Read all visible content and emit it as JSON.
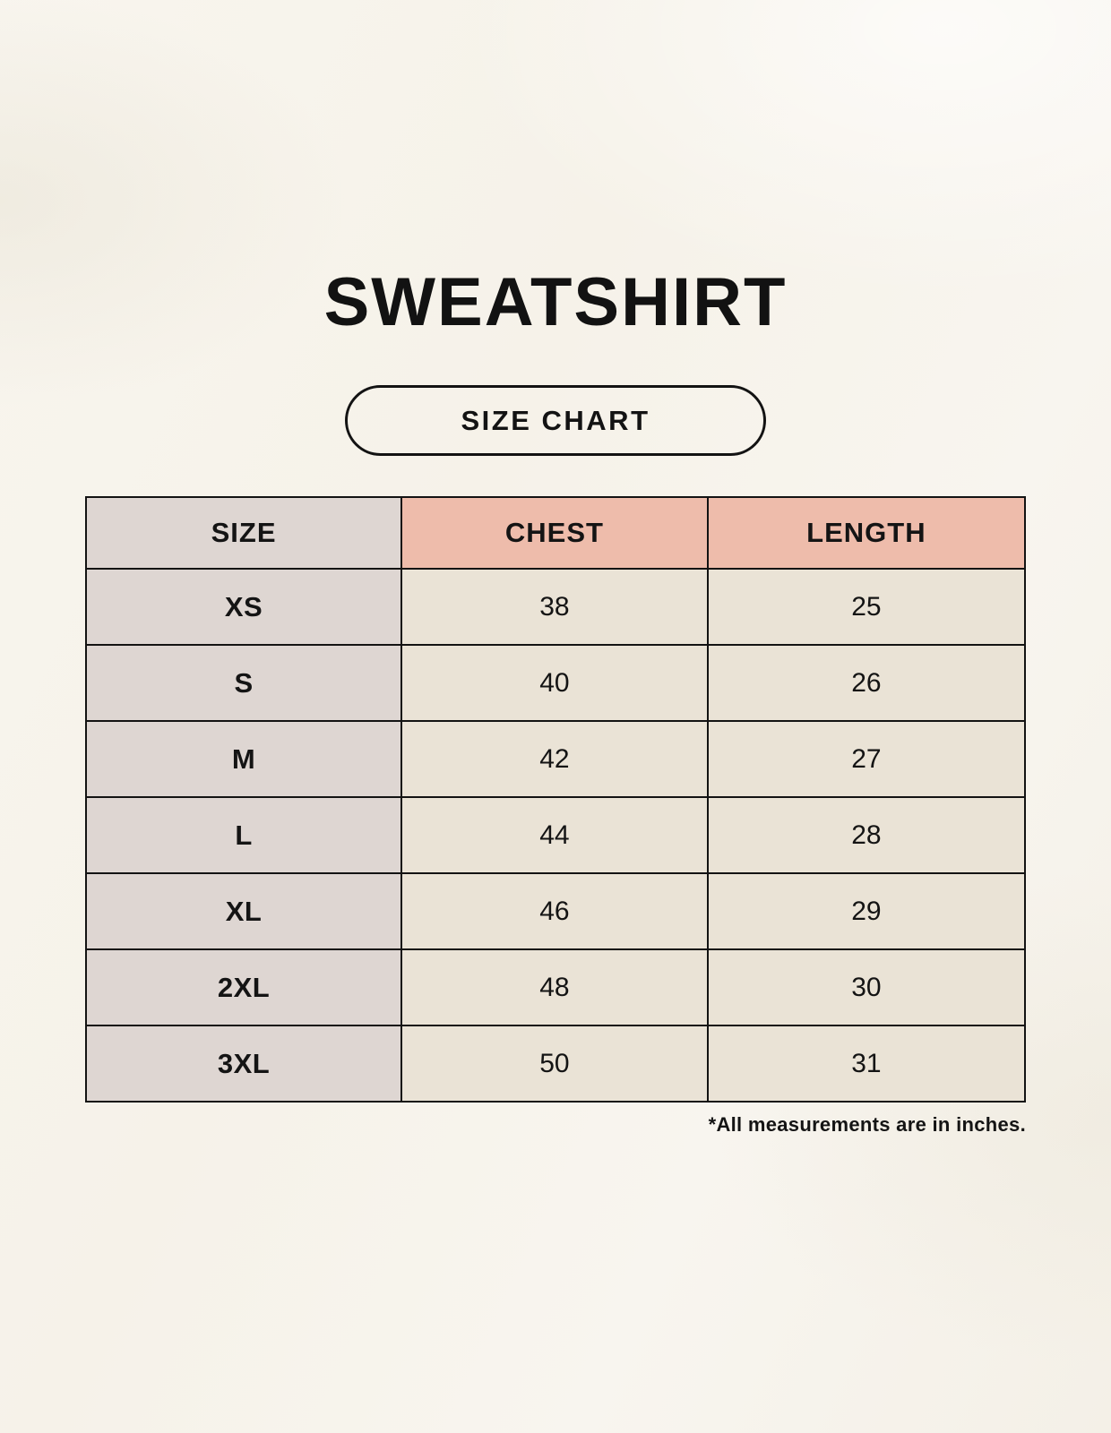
{
  "page": {
    "title": "SWEATSHIRT",
    "badge_label": "SIZE CHART",
    "footnote": "*All measurements are in inches."
  },
  "colors": {
    "background": "#f6f2e9",
    "header_size_bg": "#ded6d2",
    "header_measure_bg": "#eebcab",
    "size_column_bg": "#ded6d2",
    "data_cell_bg": "#eae3d6",
    "border": "#131313",
    "text": "#141414"
  },
  "chart_data": {
    "type": "table",
    "title": "SWEATSHIRT",
    "subtitle": "SIZE CHART",
    "columns": [
      "SIZE",
      "CHEST",
      "LENGTH"
    ],
    "rows": [
      {
        "size": "XS",
        "chest": "38",
        "length": "25"
      },
      {
        "size": "S",
        "chest": "40",
        "length": "26"
      },
      {
        "size": "M",
        "chest": "42",
        "length": "27"
      },
      {
        "size": "L",
        "chest": "44",
        "length": "28"
      },
      {
        "size": "XL",
        "chest": "46",
        "length": "29"
      },
      {
        "size": "2XL",
        "chest": "48",
        "length": "30"
      },
      {
        "size": "3XL",
        "chest": "50",
        "length": "31"
      }
    ],
    "units": "inches",
    "footnote": "*All measurements are in inches."
  }
}
